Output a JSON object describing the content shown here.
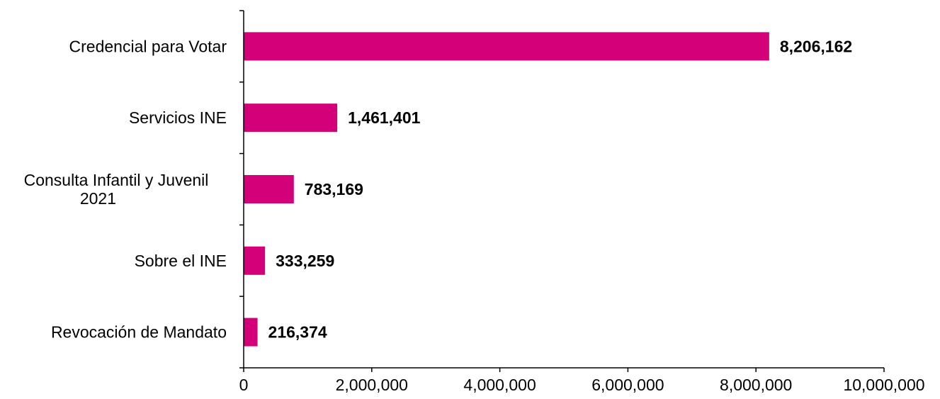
{
  "chart_data": {
    "type": "bar",
    "orientation": "horizontal",
    "categories": [
      "Credencial para Votar",
      "Servicios INE",
      "Consulta Infantil y Juvenil 2021",
      "Sobre el INE",
      "Revocación de Mandato"
    ],
    "category_lines": [
      [
        "Credencial para Votar"
      ],
      [
        "Servicios INE"
      ],
      [
        "Consulta Infantil y Juvenil",
        "2021"
      ],
      [
        "Sobre el INE"
      ],
      [
        "Revocación de Mandato"
      ]
    ],
    "values": [
      8206162,
      1461401,
      783169,
      333259,
      216374
    ],
    "data_labels": [
      "8,206,162",
      "1,461,401",
      "783,169",
      "333,259",
      "216,374"
    ],
    "xlim": [
      0,
      10000000
    ],
    "xticks": [
      0,
      2000000,
      4000000,
      6000000,
      8000000,
      10000000
    ],
    "xtick_labels": [
      "0",
      "2,000,000",
      "4,000,000",
      "6,000,000",
      "8,000,000",
      "10,000,000"
    ],
    "title": "",
    "xlabel": "",
    "ylabel": "",
    "grid": false,
    "legend": "none",
    "colors": {
      "bar": "#D4007A",
      "axis": "#000000",
      "text": "#000000"
    }
  }
}
